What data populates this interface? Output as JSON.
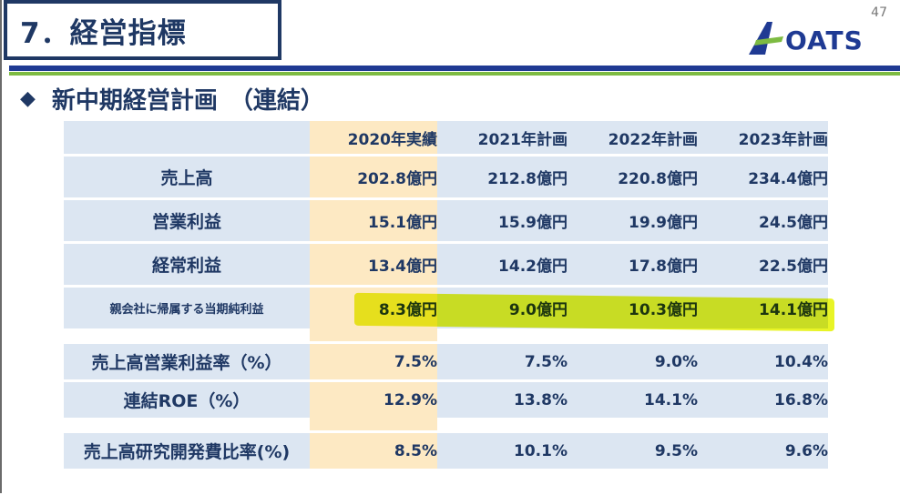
{
  "header": {
    "title": "7．経営指標",
    "page_number": "47",
    "logo_text": "OATS"
  },
  "section": {
    "bullet": "◆",
    "heading": "新中期経営計画　（連結）"
  },
  "table": {
    "columns": [
      "2020年実績",
      "2021年計画",
      "2022年計画",
      "2023年計画"
    ],
    "rows": [
      {
        "label": "売上高",
        "values": [
          "202.8億円",
          "212.8億円",
          "220.8億円",
          "234.4億円"
        ]
      },
      {
        "label": "営業利益",
        "values": [
          "15.1億円",
          "15.9億円",
          "19.9億円",
          "24.5億円"
        ]
      },
      {
        "label": "経常利益",
        "values": [
          "13.4億円",
          "14.2億円",
          "17.8億円",
          "22.5億円"
        ]
      },
      {
        "label": "親会社に帰属する当期純利益",
        "values": [
          "8.3億円",
          "9.0億円",
          "10.3億円",
          "14.1億円"
        ]
      },
      {
        "label": "売上高営業利益率（%）",
        "values": [
          "7.5%",
          "7.5%",
          "9.0%",
          "10.4%"
        ]
      },
      {
        "label": "連結ROE（%）",
        "values": [
          "12.9%",
          "13.8%",
          "14.1%",
          "16.8%"
        ]
      },
      {
        "label": "売上高研究開発費比率(%)",
        "values": [
          "8.5%",
          "10.1%",
          "9.5%",
          "9.6%"
        ]
      }
    ]
  },
  "colors": {
    "navy": "#1f3864",
    "accent_blue": "#1f3a93",
    "accent_green": "#7dbb42",
    "cell_blue": "#dce6f2",
    "cell_actual": "#fde9c3",
    "highlight": "#e4f200"
  }
}
